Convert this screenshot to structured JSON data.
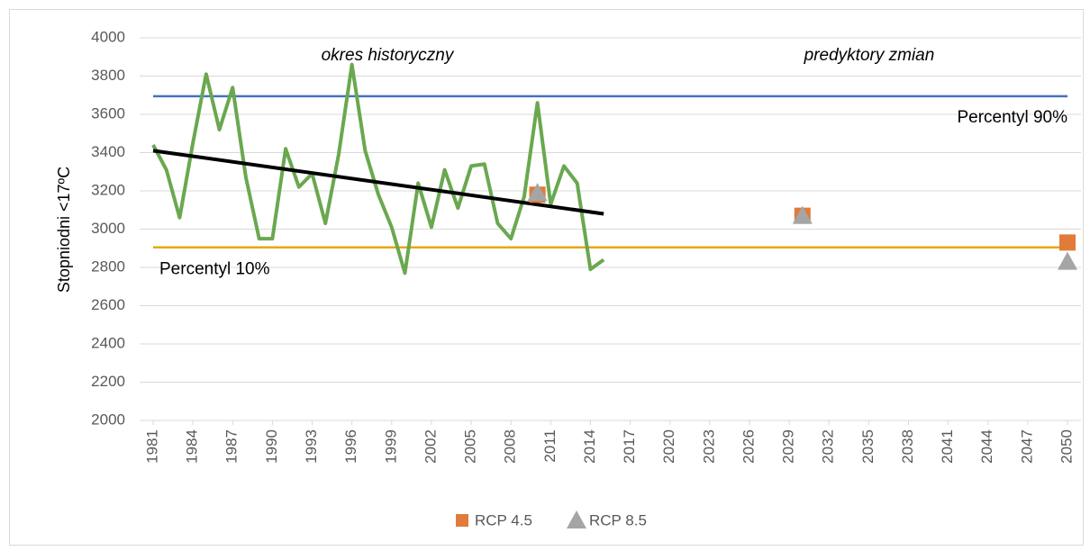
{
  "chart_data": {
    "type": "line",
    "ylabel": "Stopniodni <17ºC",
    "xlim": [
      1981,
      2050
    ],
    "xticks": [
      1981,
      1984,
      1987,
      1990,
      1993,
      1996,
      1999,
      2002,
      2005,
      2008,
      2011,
      2014,
      2017,
      2020,
      2023,
      2026,
      2029,
      2032,
      2035,
      2038,
      2041,
      2044,
      2047,
      2050
    ],
    "ylim": [
      2000,
      4000
    ],
    "yticks": [
      2000,
      2200,
      2400,
      2600,
      2800,
      3000,
      3200,
      3400,
      3600,
      3800,
      4000
    ],
    "grid": true,
    "legend": "bottom",
    "annotations": [
      "okres historyczny",
      "predyktory zmian"
    ],
    "hlines": [
      {
        "label": "Percentyl 90%",
        "value": 3695,
        "color": "#4472c4"
      },
      {
        "label": "Percentyl 10%",
        "value": 2905,
        "color": "#e5a812"
      }
    ],
    "series": [
      {
        "color": "#6aa84f",
        "x": [
          1981,
          1982,
          1983,
          1984,
          1985,
          1986,
          1987,
          1988,
          1989,
          1990,
          1991,
          1992,
          1993,
          1994,
          1995,
          1996,
          1997,
          1998,
          1999,
          2000,
          2001,
          2002,
          2003,
          2004,
          2005,
          2006,
          2007,
          2008,
          2009,
          2010,
          2011,
          2012,
          2013,
          2014,
          2015
        ],
        "values": [
          3440,
          3310,
          3060,
          3450,
          3810,
          3520,
          3740,
          3270,
          2950,
          2950,
          3420,
          3220,
          3290,
          3030,
          3390,
          3860,
          3410,
          3180,
          3010,
          2770,
          3240,
          3010,
          3310,
          3110,
          3330,
          3340,
          3030,
          2950,
          3170,
          3660,
          3130,
          3330,
          3240,
          2790,
          2840
        ]
      },
      {
        "color": "#000000",
        "x": [
          1981,
          2015
        ],
        "values": [
          3410,
          3080
        ]
      },
      {
        "name": "RCP 4.5",
        "marker": "square",
        "color": "#e07b39",
        "x": [
          2010,
          2030,
          2050
        ],
        "values": [
          3180,
          3070,
          2930
        ]
      },
      {
        "name": "RCP 8.5",
        "marker": "triangle",
        "color": "#a5a5a5",
        "x": [
          2010,
          2030,
          2050
        ],
        "values": [
          3190,
          3070,
          2830
        ]
      }
    ]
  }
}
